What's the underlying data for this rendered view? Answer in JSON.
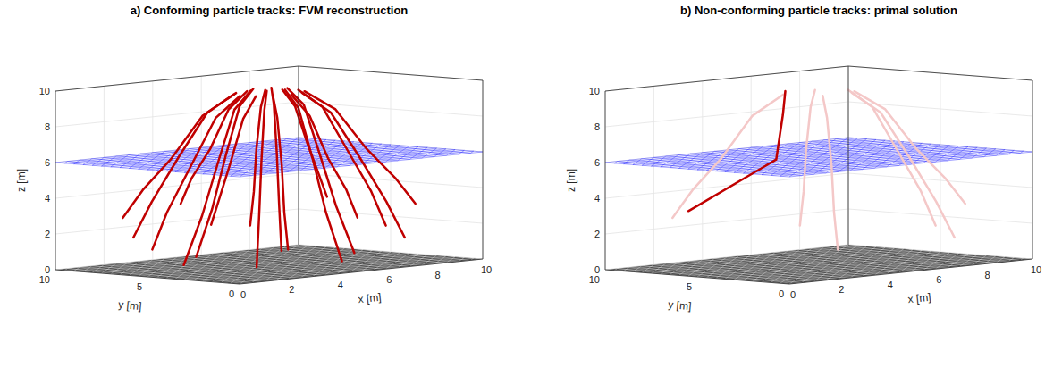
{
  "chart_data": [
    {
      "type": "line3d",
      "title": "a) Conforming particle tracks: FVM reconstruction",
      "x_label": "x [m]",
      "y_label": "y [m]",
      "z_label": "z [m]",
      "xlim": [
        0,
        10
      ],
      "ylim": [
        0,
        10
      ],
      "zlim": [
        0,
        10
      ],
      "xticks": [
        0,
        2,
        4,
        6,
        8,
        10
      ],
      "yticks": [
        0,
        5,
        10
      ],
      "zticks": [
        0,
        2,
        4,
        6,
        8,
        10
      ],
      "grid": true,
      "planes": [
        {
          "z": 0,
          "color": "#404040"
        },
        {
          "z": 6,
          "color": "#2020ff"
        }
      ],
      "tracks": [
        {
          "color": "#c00000",
          "points": [
            [
              6.2,
              5,
              9.6
            ],
            [
              7.2,
              5,
              8.5
            ],
            [
              8.2,
              5,
              6
            ],
            [
              9.2,
              5,
              3.5
            ],
            [
              9.8,
              5,
              1.5
            ]
          ]
        },
        {
          "color": "#c00000",
          "points": [
            [
              6.0,
              5.6,
              9.6
            ],
            [
              6.9,
              6.1,
              8.5
            ],
            [
              7.8,
              6.6,
              6.2
            ],
            [
              8.6,
              7.1,
              4.5
            ],
            [
              9.2,
              7.4,
              3
            ]
          ]
        },
        {
          "color": "#c00000",
          "points": [
            [
              5.6,
              6.0,
              9.6
            ],
            [
              6.1,
              6.9,
              8.5
            ],
            [
              6.6,
              7.8,
              6
            ],
            [
              7.1,
              8.6,
              3.5
            ],
            [
              7.4,
              9.2,
              1.5
            ]
          ]
        },
        {
          "color": "#c00000",
          "points": [
            [
              5,
              6.2,
              9.6
            ],
            [
              5,
              7.2,
              8.5
            ],
            [
              5,
              8.2,
              6.2
            ],
            [
              5,
              9.2,
              4.5
            ],
            [
              5,
              9.8,
              3
            ]
          ]
        },
        {
          "color": "#c00000",
          "points": [
            [
              4.4,
              6.0,
              9.6
            ],
            [
              3.9,
              6.9,
              8.5
            ],
            [
              3.4,
              7.8,
              6
            ],
            [
              2.9,
              8.6,
              3.5
            ],
            [
              2.6,
              9.2,
              1.5
            ]
          ]
        },
        {
          "color": "#c00000",
          "points": [
            [
              4.0,
              5.6,
              9.6
            ],
            [
              3.1,
              6.1,
              8.5
            ],
            [
              2.2,
              6.6,
              6.2
            ],
            [
              1.4,
              7.1,
              4.5
            ],
            [
              0.8,
              7.4,
              3
            ]
          ]
        },
        {
          "color": "#c00000",
          "points": [
            [
              3.8,
              5,
              9.6
            ],
            [
              2.8,
              5,
              8.5
            ],
            [
              1.8,
              5,
              6
            ],
            [
              0.8,
              5,
              3.5
            ],
            [
              0.2,
              5,
              1.5
            ]
          ]
        },
        {
          "color": "#c00000",
          "points": [
            [
              4.0,
              4.4,
              9.6
            ],
            [
              3.1,
              3.9,
              8.5
            ],
            [
              2.2,
              3.4,
              6.2
            ],
            [
              1.4,
              2.9,
              4.5
            ],
            [
              0.8,
              2.6,
              3
            ]
          ]
        },
        {
          "color": "#c00000",
          "points": [
            [
              4.4,
              4.0,
              9.6
            ],
            [
              3.9,
              3.1,
              8.5
            ],
            [
              3.4,
              2.2,
              6
            ],
            [
              2.9,
              1.4,
              3.5
            ],
            [
              2.6,
              0.8,
              1.5
            ]
          ]
        },
        {
          "color": "#c00000",
          "points": [
            [
              5,
              3.8,
              9.6
            ],
            [
              5,
              2.8,
              8.5
            ],
            [
              5,
              1.8,
              6.2
            ],
            [
              5,
              0.8,
              4.5
            ],
            [
              5,
              0.2,
              3
            ]
          ]
        },
        {
          "color": "#c00000",
          "points": [
            [
              5.6,
              4.0,
              9.6
            ],
            [
              6.1,
              3.1,
              8.5
            ],
            [
              6.6,
              2.2,
              6
            ],
            [
              7.1,
              1.4,
              3.5
            ],
            [
              7.4,
              0.8,
              1.5
            ]
          ]
        },
        {
          "color": "#c00000",
          "points": [
            [
              6.0,
              4.4,
              9.6
            ],
            [
              6.9,
              3.9,
              8.5
            ],
            [
              7.8,
              3.4,
              6.2
            ],
            [
              8.6,
              2.9,
              4.5
            ],
            [
              9.2,
              2.6,
              3
            ]
          ]
        },
        {
          "color": "#c00000",
          "points": [
            [
              5.4,
              5.4,
              9.8
            ],
            [
              5.8,
              5.8,
              8.8
            ],
            [
              6.3,
              6.3,
              6
            ],
            [
              6.7,
              6.7,
              3
            ],
            [
              7.1,
              7.1,
              0.3
            ]
          ]
        },
        {
          "color": "#c00000",
          "points": [
            [
              4.8,
              5.6,
              9.8
            ],
            [
              4.7,
              6.2,
              8.8
            ],
            [
              4.5,
              6.7,
              6
            ],
            [
              4.4,
              7.3,
              3
            ],
            [
              4.2,
              7.9,
              0.3
            ]
          ]
        },
        {
          "color": "#c00000",
          "points": [
            [
              4.4,
              5.2,
              9.8
            ],
            [
              3.8,
              5.3,
              8.8
            ],
            [
              3.3,
              5.5,
              6
            ],
            [
              2.7,
              5.6,
              3
            ],
            [
              2.1,
              5.8,
              0.3
            ]
          ]
        },
        {
          "color": "#c00000",
          "points": [
            [
              4.6,
              4.6,
              9.8
            ],
            [
              4.2,
              4.2,
              8.8
            ],
            [
              3.7,
              3.7,
              6
            ],
            [
              3.3,
              3.3,
              3
            ],
            [
              2.9,
              2.9,
              0.3
            ]
          ]
        },
        {
          "color": "#c00000",
          "points": [
            [
              5.2,
              4.4,
              9.8
            ],
            [
              5.3,
              3.8,
              8.8
            ],
            [
              5.5,
              3.3,
              6
            ],
            [
              5.6,
              2.7,
              3
            ],
            [
              5.8,
              2.1,
              0.3
            ]
          ]
        },
        {
          "color": "#c00000",
          "points": [
            [
              5.6,
              4.8,
              9.8
            ],
            [
              6.2,
              4.7,
              8.8
            ],
            [
              6.7,
              4.5,
              6
            ],
            [
              7.3,
              4.4,
              3
            ],
            [
              7.9,
              4.2,
              0.3
            ]
          ]
        }
      ]
    },
    {
      "type": "line3d",
      "title": "b) Non-conforming particle tracks: primal solution",
      "x_label": "x [m]",
      "y_label": "y [m]",
      "z_label": "z [m]",
      "xlim": [
        0,
        10
      ],
      "ylim": [
        0,
        10
      ],
      "zlim": [
        0,
        10
      ],
      "xticks": [
        0,
        2,
        4,
        6,
        8,
        10
      ],
      "yticks": [
        0,
        5,
        10
      ],
      "zticks": [
        0,
        2,
        4,
        6,
        8,
        10
      ],
      "grid": true,
      "planes": [
        {
          "z": 0,
          "color": "#404040"
        },
        {
          "z": 6,
          "color": "#2020ff"
        }
      ],
      "tracks": [
        {
          "color": "#f4c8c8",
          "points": [
            [
              6.2,
              5,
              9.6
            ],
            [
              7.2,
              5,
              8.5
            ],
            [
              8.2,
              5,
              6
            ],
            [
              9.2,
              5,
              3.5
            ],
            [
              9.8,
              5,
              1.5
            ]
          ]
        },
        {
          "color": "#f4c8c8",
          "points": [
            [
              5.6,
              6.0,
              9.6
            ],
            [
              6.1,
              6.9,
              8.5
            ],
            [
              6.6,
              7.8,
              6
            ],
            [
              7.1,
              8.6,
              3.5
            ],
            [
              7.4,
              9.2,
              1.5
            ]
          ]
        },
        {
          "color": "#f4c8c8",
          "points": [
            [
              4.0,
              5.6,
              9.6
            ],
            [
              3.1,
              6.1,
              8.5
            ],
            [
              2.2,
              6.6,
              6.2
            ],
            [
              1.4,
              7.1,
              4.5
            ],
            [
              0.8,
              7.4,
              3
            ]
          ]
        },
        {
          "color": "#f4c8c8",
          "points": [
            [
              4.4,
              4.0,
              9.6
            ],
            [
              3.9,
              3.1,
              8.5
            ],
            [
              3.4,
              2.2,
              6
            ],
            [
              2.9,
              1.4,
              3.5
            ],
            [
              2.6,
              0.8,
              1.5
            ]
          ]
        },
        {
          "color": "#f4c8c8",
          "points": [
            [
              5.6,
              4.0,
              9.6
            ],
            [
              6.1,
              3.1,
              8.5
            ],
            [
              6.6,
              2.2,
              6
            ],
            [
              7.1,
              1.4,
              3.5
            ],
            [
              7.4,
              0.8,
              1.5
            ]
          ]
        },
        {
          "color": "#f4c8c8",
          "points": [
            [
              6.0,
              4.4,
              9.6
            ],
            [
              6.9,
              3.9,
              8.5
            ],
            [
              7.8,
              3.4,
              6.2
            ],
            [
              8.6,
              2.9,
              4.5
            ],
            [
              9.2,
              2.6,
              3
            ]
          ]
        },
        {
          "color": "#c00000",
          "points": [
            [
              4,
              5.5,
              9.8
            ],
            [
              3.9,
              5.5,
              8.5
            ],
            [
              3.7,
              5.6,
              6
            ],
            [
              3.3,
              5.8,
              5.6
            ],
            [
              1,
              6.8,
              3.4
            ]
          ]
        }
      ]
    }
  ]
}
